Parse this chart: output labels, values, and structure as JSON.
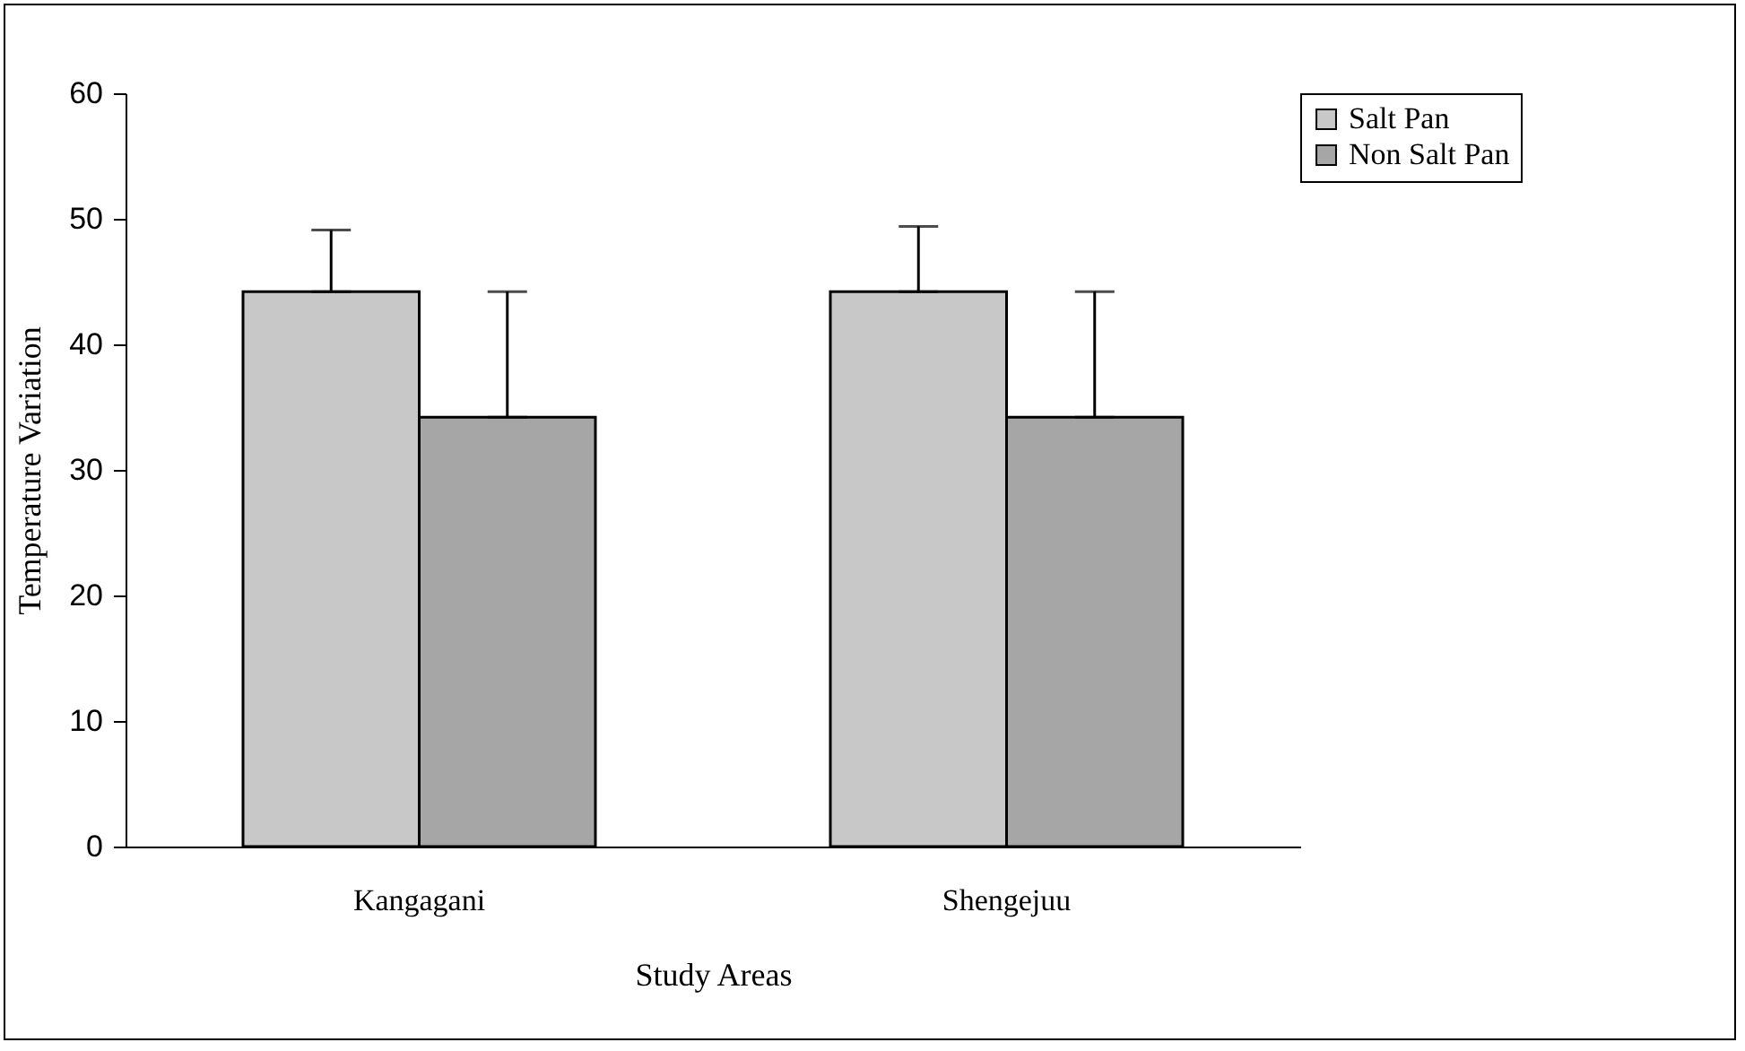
{
  "chart_data": {
    "type": "bar",
    "xlabel": "Study Areas",
    "ylabel": "Temperature Variation",
    "categories": [
      "Kangagani",
      "Shengejuu"
    ],
    "series": [
      {
        "name": "Salt Pan",
        "color": "#c8c8c8",
        "values": [
          44.2,
          44.2
        ],
        "errors": [
          [
            44.2,
            49.1
          ],
          [
            44.2,
            49.4
          ]
        ]
      },
      {
        "name": "Non Salt Pan",
        "color": "#a6a6a6",
        "values": [
          34.2,
          34.2
        ],
        "errors": [
          [
            34.2,
            44.2
          ],
          [
            34.2,
            44.2
          ]
        ]
      }
    ],
    "ylim": [
      0,
      60
    ],
    "yticks": [
      0,
      10,
      20,
      30,
      40,
      50,
      60
    ],
    "grid": false,
    "legend": "right"
  }
}
